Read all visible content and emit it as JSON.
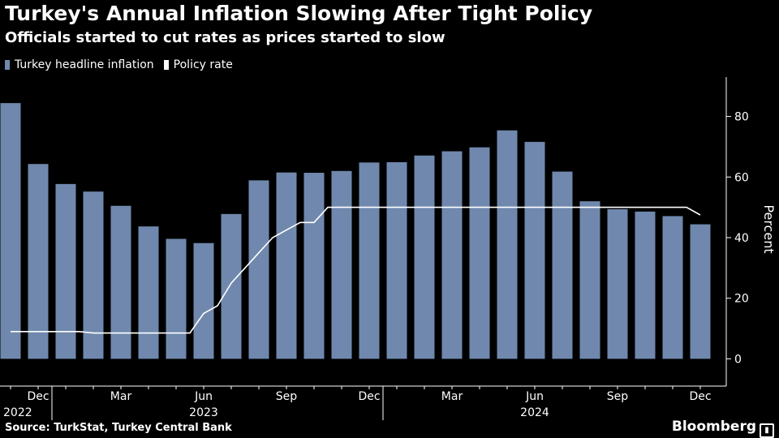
{
  "title": "Turkey's Annual Inflation Slowing After Tight Policy",
  "subtitle": "Officials started to cut rates as prices started to slow",
  "legend": [
    {
      "label": "Turkey headline inflation",
      "color": "#7088ad"
    },
    {
      "label": "Policy rate",
      "color": "#ffffff"
    }
  ],
  "source": "Source: TurkStat, Turkey Central Bank",
  "brand": "Bloomberg",
  "chart_data": {
    "type": "bar",
    "categories": [
      "Nov 2022",
      "Dec 2022",
      "Jan 2023",
      "Feb 2023",
      "Mar 2023",
      "Apr 2023",
      "May 2023",
      "Jun 2023",
      "Jul 2023",
      "Aug 2023",
      "Sep 2023",
      "Oct 2023",
      "Nov 2023",
      "Dec 2023",
      "Jan 2024",
      "Feb 2024",
      "Mar 2024",
      "Apr 2024",
      "May 2024",
      "Jun 2024",
      "Jul 2024",
      "Aug 2024",
      "Sep 2024",
      "Oct 2024",
      "Nov 2024",
      "Dec 2024"
    ],
    "series": [
      {
        "name": "Turkey headline inflation",
        "type": "bar",
        "color": "#7088ad",
        "values": [
          84.4,
          64.3,
          57.7,
          55.2,
          50.5,
          43.7,
          39.6,
          38.2,
          47.8,
          58.9,
          61.5,
          61.4,
          62.0,
          64.8,
          64.9,
          67.1,
          68.5,
          69.8,
          75.4,
          71.6,
          61.8,
          52.0,
          49.4,
          48.6,
          47.1,
          44.4
        ]
      },
      {
        "name": "Policy rate",
        "type": "line",
        "color": "#ffffff",
        "points": [
          [
            0,
            9
          ],
          [
            2.5,
            9
          ],
          [
            3,
            8.5
          ],
          [
            6.5,
            8.5
          ],
          [
            7,
            15
          ],
          [
            7.5,
            17.5
          ],
          [
            8,
            25
          ],
          [
            8.5,
            30
          ],
          [
            9,
            35
          ],
          [
            9.5,
            40
          ],
          [
            10,
            42.5
          ],
          [
            10.5,
            45
          ],
          [
            11,
            45
          ],
          [
            11.5,
            50
          ],
          [
            24.5,
            50
          ],
          [
            25,
            47.5
          ]
        ]
      }
    ],
    "y_ticks": [
      0,
      20,
      40,
      60,
      80
    ],
    "ylim": [
      -9,
      93
    ],
    "ylabel": "Percent",
    "x_ticks": [
      {
        "index": 1,
        "label": "Dec"
      },
      {
        "index": 4,
        "label": "Mar"
      },
      {
        "index": 7,
        "label": "Jun"
      },
      {
        "index": 10,
        "label": "Sep"
      },
      {
        "index": 13,
        "label": "Dec"
      },
      {
        "index": 16,
        "label": "Mar"
      },
      {
        "index": 19,
        "label": "Jun"
      },
      {
        "index": 22,
        "label": "Sep"
      },
      {
        "index": 25,
        "label": "Dec"
      }
    ],
    "year_labels": [
      {
        "index": 0,
        "label": "2022"
      },
      {
        "index": 7,
        "label": "2023"
      },
      {
        "index": 19,
        "label": "2024"
      }
    ],
    "year_separators": [
      1.5,
      13.5
    ]
  }
}
